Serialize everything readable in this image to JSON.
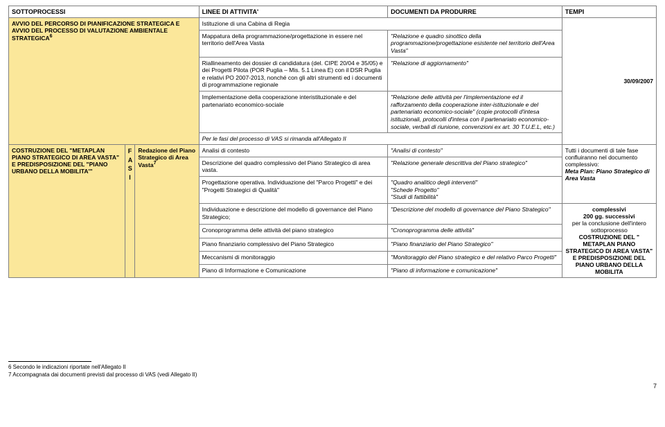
{
  "header": {
    "sottoprocessi": "SOTTOPROCESSI",
    "linee": "LINEE DI ATTIVITA'",
    "documenti": "DOCUMENTI DA PRODURRE",
    "tempi": "TEMPI"
  },
  "row1": {
    "sotto_html": "AVVIO DEL PERCORSO DI PIANIFICAZIONE STRATEGICA E AVVIO DEL PROCESSO DI VALUTAZIONE AMBIENTALE STRATEGICA<sup>6</sup>",
    "linee0": "Istituzione di una Cabina di Regia",
    "linee1": "Mappatura della programmazione/progettazione in essere nel territorio dell'Area Vasta",
    "doc1": "\"Relazione e quadro sinottico della programmazione/progettazione esistente nel territorio dell'Area Vasta\"",
    "linee2": "Riallineamento dei dossier di candidatura (del. CIPE 20/04 e 35/05) e dei Progetti Pilota (POR Puglia – Mis. 5.1 Linea E) con il DSR Puglia e relativi PO 2007-2013, nonché con gli altri strumenti ed i documenti di programmazione regionale",
    "doc2": "\"Relazione di aggiornamento\"",
    "linee3": "Implementazione della cooperazione interistituzionale e del partenariato economico-sociale",
    "doc3": "\"Relazione delle attività per l'implementazione ed il rafforzamento della cooperazione inter-istituzionale e del partenariato economico-sociale\" (copie protocolli d'intesa istituzionali, protocolli d'intesa con il partenariato economico-sociale, verbali di riunione, convenzioni ex art. 30 T.U.E.L, etc.)",
    "linee4": "Per le fasi del processo di VAS si rimanda all'Allegato II",
    "tempi": "30/09/2007"
  },
  "row2": {
    "sotto_html": "COSTRUZIONE DEL \"METAPLAN PIANO STRATEGICO DI AREA VASTA\" E PREDISPOSIZIONE DEL \"PIANO URBANO DELLA MOBILITA'\"",
    "fasi_html": "F<br>A<br>S<br>I",
    "redaz_html": "Redazione del Piano Strategico di Area Vasta<sup>7</sup>",
    "linee_a": "Analisi di contesto",
    "doc_a": "\"Analisi di contesto\"",
    "linee_b": "Descrizione del quadro complessivo del Piano Strategico di area vasta.",
    "doc_b": "\"Relazione generale descrittiva del Piano strategico\"",
    "linee_c": "Progettazione operativa. Individuazione del \"Parco Progetti\" e dei \"Progetti Strategici di Qualità\"",
    "doc_c": "\"Quadro analitico degli interventi\"\n\"Schede Progetto\"\n\"Studi di fattibilità\"",
    "linee_d": "Individuazione e descrizione del modello di governance del Piano Strategico;",
    "doc_d": "\"Descrizione del modello di governance del Piano Strategico\"",
    "linee_e": "Cronoprogramma delle attività del piano strategico",
    "doc_e": "\"Cronoprogramma delle attività\"",
    "linee_f": "Piano finanziario complessivo del Piano Strategico",
    "doc_f": "\"Piano finanziario del Piano Strategico\"",
    "linee_g": "Meccanismi di monitoraggio",
    "doc_g": "\"Monitoraggio del Piano strategico e del relativo Parco Progetti\"",
    "linee_h": "Piano di Informazione e Comunicazione",
    "doc_h": "\"Piano di informazione e comunicazione\"",
    "tempi_top": "Tutti i documenti di tale fase confluiranno nel documento complessivo:",
    "tempi_meta": "Meta Plan: Piano Strategico di Area Vasta",
    "tempi_mid1": "complessivi",
    "tempi_mid2": "200 gg. successivi",
    "tempi_rest": "per la conclusione dell'intero sottoprocesso",
    "tempi_bold_rest": "COSTRUZIONE DEL \" METAPLAN PIANO STRATEGICO DI AREA VASTA\" E PREDISPOSIZIONE DEL PIANO URBANO DELLA MOBILITA"
  },
  "footnotes": {
    "f6": "6 Secondo le indicazioni riportate nell'Allegato II",
    "f7": "7 Accompagnata dai documenti previsti dal processo di VAS (vedi Allegato II)"
  },
  "pagenum": "7"
}
